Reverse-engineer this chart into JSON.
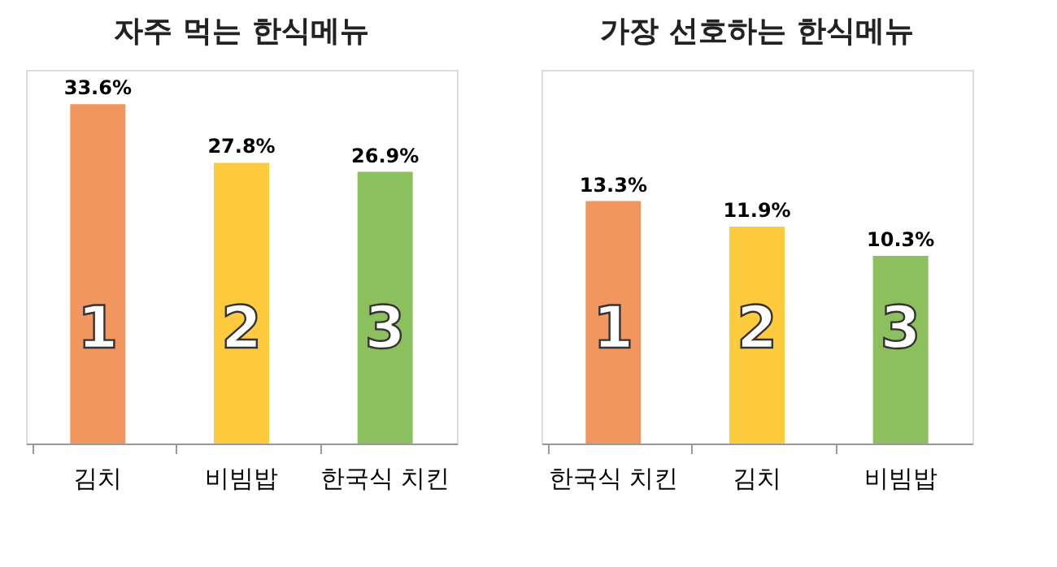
{
  "chart_data": [
    {
      "type": "bar",
      "title": "자주 먹는 한식메뉴",
      "categories": [
        "김치",
        "비빔밥",
        "한국식 치킨"
      ],
      "values": [
        33.6,
        27.8,
        26.9
      ],
      "value_labels": [
        "33.6%",
        "27.8%",
        "26.9%"
      ],
      "colors": [
        "#f0965e",
        "#fecb3f",
        "#8cbf5e"
      ],
      "ylim": [
        0,
        37
      ],
      "tick_labels": "x",
      "annotations": [
        "1",
        "2",
        "3"
      ]
    },
    {
      "type": "bar",
      "title": "가장 선호하는 한식메뉴",
      "categories": [
        "한국식 치킨",
        "김치",
        "비빔밥"
      ],
      "values": [
        13.3,
        11.9,
        10.3
      ],
      "value_labels": [
        "13.3%",
        "11.9%",
        "10.3%"
      ],
      "colors": [
        "#f0965e",
        "#fecb3f",
        "#8cbf5e"
      ],
      "ylim": [
        0,
        20.5
      ],
      "tick_labels": "x",
      "annotations": [
        "1",
        "2",
        "3"
      ]
    }
  ]
}
